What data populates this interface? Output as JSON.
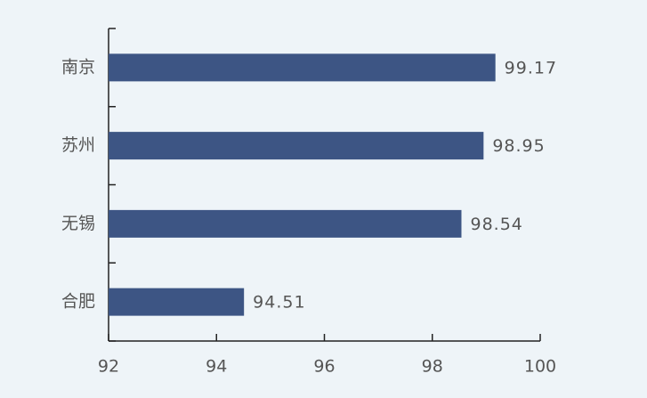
{
  "chart_data": {
    "type": "bar",
    "orientation": "horizontal",
    "categories": [
      "南京",
      "苏州",
      "无锡",
      "合肥"
    ],
    "values": [
      99.17,
      98.95,
      98.54,
      94.51
    ],
    "color": "#3d5584",
    "xlim": [
      92,
      100
    ],
    "xticks": [
      92,
      94,
      96,
      98,
      100
    ],
    "grid": false
  }
}
